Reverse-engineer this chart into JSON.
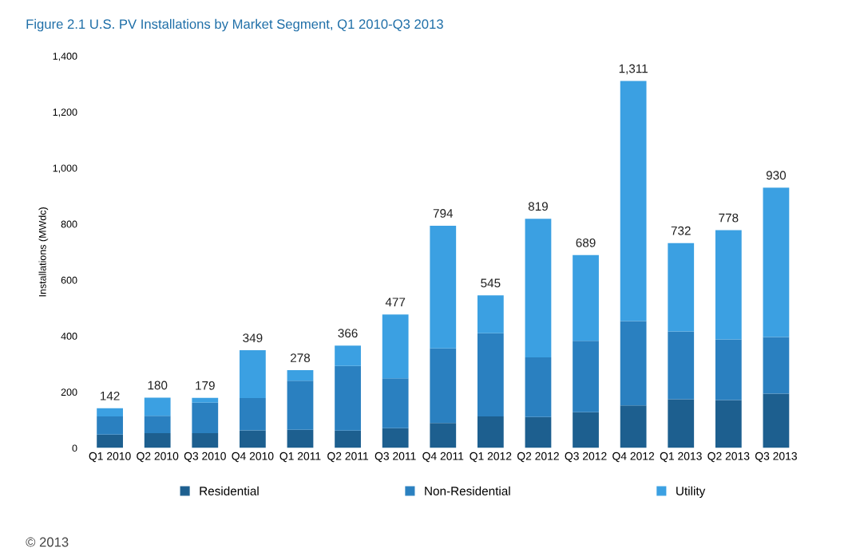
{
  "chart_data": {
    "type": "bar",
    "title": "Figure 2.1 U.S. PV Installations by Market Segment, Q1 2010-Q3 2013",
    "ylabel": "Installations (MWdc)",
    "categories": [
      "Q1 2010",
      "Q2 2010",
      "Q3 2010",
      "Q4 2010",
      "Q1 2011",
      "Q2 2011",
      "Q3 2011",
      "Q4 2011",
      "Q1 2012",
      "Q2 2012",
      "Q3 2012",
      "Q4 2012",
      "Q1 2013",
      "Q2 2013",
      "Q3 2013"
    ],
    "stacked": true,
    "series": [
      {
        "name": "Residential",
        "color": "#1d5f8f",
        "values": [
          48,
          53,
          53,
          63,
          65,
          62,
          71,
          89,
          113,
          111,
          128,
          152,
          174,
          171,
          194
        ]
      },
      {
        "name": "Non-Residential",
        "color": "#2a80c0",
        "values": [
          65,
          62,
          109,
          115,
          175,
          231,
          178,
          267,
          297,
          213,
          255,
          301,
          242,
          217,
          202
        ]
      },
      {
        "name": "Utility",
        "color": "#3ba0e2",
        "values": [
          29,
          65,
          17,
          171,
          38,
          73,
          228,
          438,
          135,
          495,
          306,
          858,
          316,
          390,
          534
        ]
      }
    ],
    "totals": [
      "142",
      "180",
      "179",
      "349",
      "278",
      "366",
      "477",
      "794",
      "545",
      "819",
      "689",
      "1,311",
      "732",
      "778",
      "930"
    ],
    "ylim": [
      0,
      1400
    ],
    "yticks": [
      0,
      200,
      400,
      600,
      800,
      {
        "value": 1000,
        "label": "1,000"
      },
      {
        "value": 1200,
        "label": "1,200"
      },
      {
        "value": 1400,
        "label": "1,400"
      }
    ],
    "grid": false,
    "legend": "bottom",
    "annotations": [
      "© 2013"
    ]
  }
}
